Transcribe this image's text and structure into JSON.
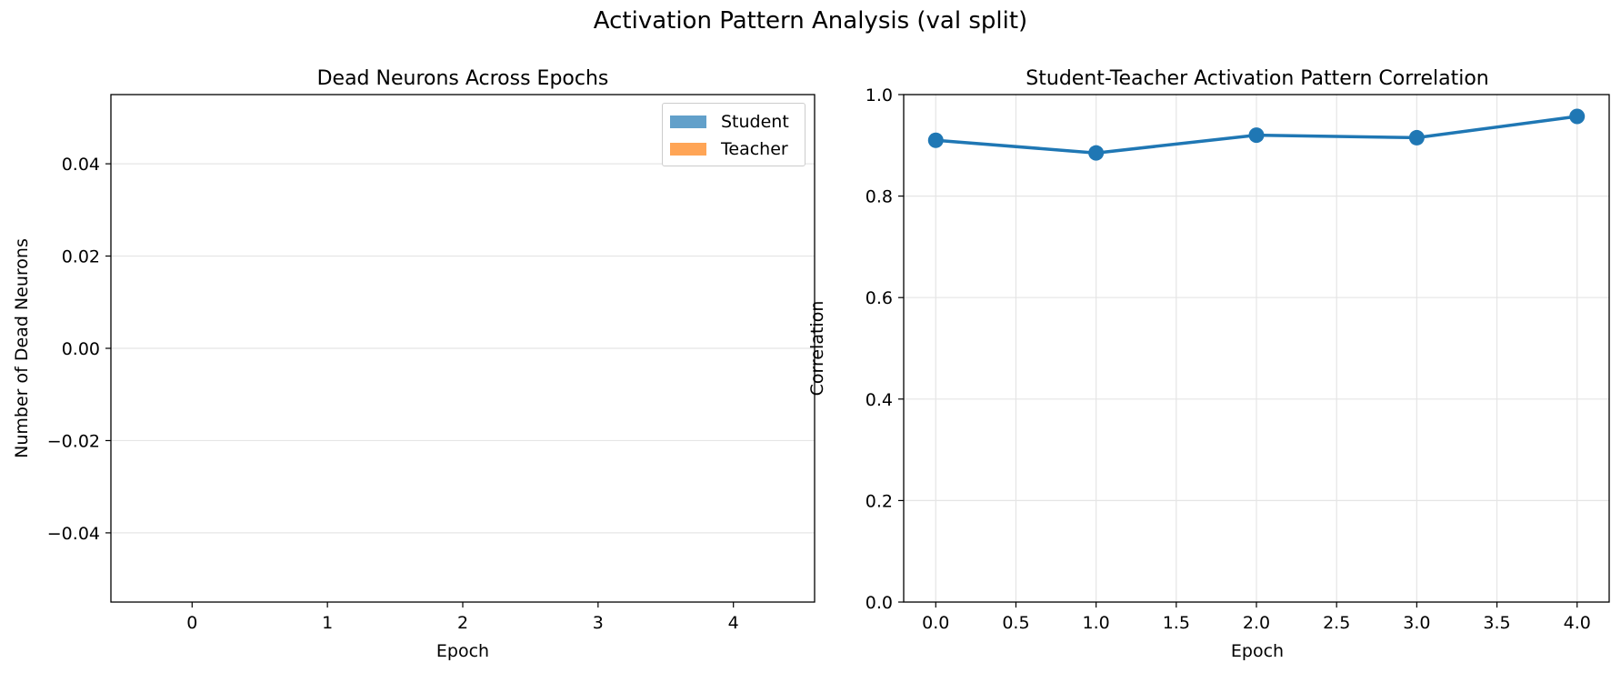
{
  "figure_title": "Activation Pattern Analysis (val split)",
  "chart_data": [
    {
      "type": "bar",
      "title": "Dead Neurons Across Epochs",
      "xlabel": "Epoch",
      "ylabel": "Number of Dead Neurons",
      "categories": [
        "0",
        "1",
        "2",
        "3",
        "4"
      ],
      "series": [
        {
          "name": "Student",
          "values": [
            0,
            0,
            0,
            0,
            0
          ],
          "color": "#1f77b4"
        },
        {
          "name": "Teacher",
          "values": [
            0,
            0,
            0,
            0,
            0
          ],
          "color": "#ff7f0e"
        }
      ],
      "ylim": [
        -0.055,
        0.055
      ],
      "yticks": [
        "0.04",
        "0.02",
        "0.00",
        "−0.02",
        "−0.04"
      ],
      "ytick_values": [
        0.04,
        0.02,
        0.0,
        -0.02,
        -0.04
      ],
      "grid": "y-axis",
      "legend_position": "top-right"
    },
    {
      "type": "line",
      "title": "Student-Teacher Activation Pattern Correlation",
      "xlabel": "Epoch",
      "ylabel": "Correlation",
      "x": [
        0,
        1,
        2,
        3,
        4
      ],
      "y": [
        0.91,
        0.885,
        0.92,
        0.915,
        0.957
      ],
      "color": "#1f77b4",
      "xlim": [
        -0.2,
        4.2
      ],
      "ylim": [
        0,
        1.0
      ],
      "xticks": [
        "0.0",
        "0.5",
        "1.0",
        "1.5",
        "2.0",
        "2.5",
        "3.0",
        "3.5",
        "4.0"
      ],
      "xtick_values": [
        0,
        0.5,
        1.0,
        1.5,
        2.0,
        2.5,
        3.0,
        3.5,
        4.0
      ],
      "yticks": [
        "0.0",
        "0.2",
        "0.4",
        "0.6",
        "0.8",
        "1.0"
      ],
      "ytick_values": [
        0,
        0.2,
        0.4,
        0.6,
        0.8,
        1.0
      ],
      "grid": "both"
    }
  ]
}
